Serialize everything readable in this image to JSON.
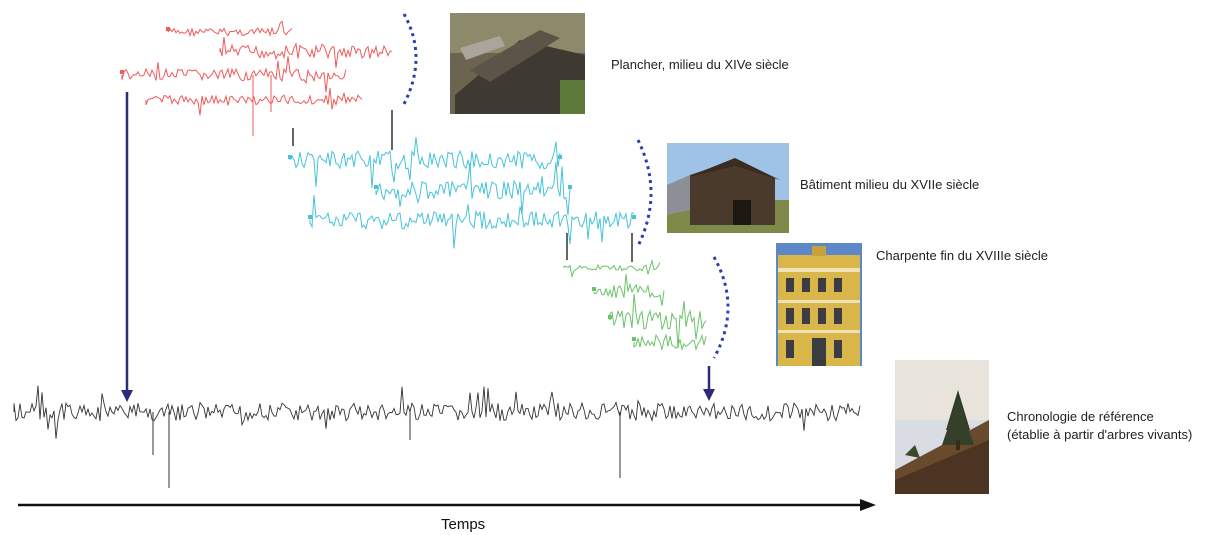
{
  "labels": {
    "floor": "Plancher, milieu du XIVe siècle",
    "building": "Bâtiment milieu du XVIIe siècle",
    "frame": "Charpente fin du XVIIIe siècle",
    "reference_line1": "Chronologie de référence",
    "reference_line2": "(établie à partir d'arbres vivants)",
    "time_axis": "Temps"
  },
  "colors": {
    "floor_series": "#f05a5a",
    "building_series": "#48c3d8",
    "frame_series": "#6cc26a",
    "reference_series": "#333333",
    "connector_arrow": "#2c2c7a",
    "bracket": "#2a3fb0"
  },
  "icons": {
    "photo_floor": "timber-floor-photo",
    "photo_building": "wooden-barn-photo",
    "photo_frame": "yellow-facade-building-photo",
    "photo_reference": "living-tree-photo"
  }
}
